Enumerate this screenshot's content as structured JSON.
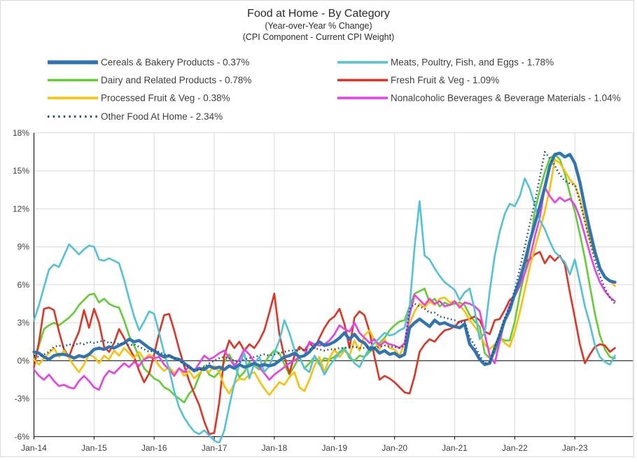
{
  "title": {
    "main": "Food at Home - By Category",
    "sub1": "(Year-over-Year % Change)",
    "sub2": "(CPI Component - Current CPI Weight)"
  },
  "colors": {
    "cereals": "#2E75B6",
    "meats": "#4EC3DC",
    "dairy": "#5FD02E",
    "fresh": "#E8301F",
    "processed": "#FFC000",
    "nonalcoholic": "#EE3CEC",
    "other": "#1F4E79",
    "gridline": "#D9D9D9",
    "axis": "#000000",
    "text": "#3f3f3f",
    "border": "#D9D9D9"
  },
  "legend": {
    "columns": [
      [
        {
          "id": "cereals",
          "label": "Cereals & Bakery Products - 0.37%",
          "style": "thick"
        },
        {
          "id": "dairy",
          "label": "Dairy and Related Products - 0.78%",
          "style": "solid"
        },
        {
          "id": "processed",
          "label": "Processed Fruit & Veg - 0.38%",
          "style": "solid"
        },
        {
          "id": "other",
          "label": "Other Food At Home - 2.34%",
          "style": "dotted"
        }
      ],
      [
        {
          "id": "meats",
          "label": "Meats, Poultry, Fish, and Eggs - 1.78%",
          "style": "solid"
        },
        {
          "id": "fresh",
          "label": "Fresh Fruit & Veg - 1.09%",
          "style": "solid"
        },
        {
          "id": "nonalcoholic",
          "label": "Nonalcoholic Beverages & Beverage Materials - 1.04%",
          "style": "solid"
        }
      ]
    ]
  },
  "chart_data": {
    "type": "line",
    "x_start": "Jan-2014",
    "x_frequency": "monthly",
    "x_tick_labels": [
      "Jan-14",
      "Jan-15",
      "Jan-16",
      "Jan-17",
      "Jan-18",
      "Jan-19",
      "Jan-20",
      "Jan-21",
      "Jan-22",
      "Jan-23"
    ],
    "y_ticks": [
      18,
      15,
      12,
      9,
      6,
      3,
      0,
      -3,
      -6
    ],
    "y_tick_suffix": "%",
    "ylim": [
      -6,
      18
    ],
    "grid": true,
    "legend_position": "top-left",
    "series": [
      {
        "id": "dairy",
        "name": "Dairy and Related Products - 0.78%",
        "values": [
          0.0,
          1.2,
          2.5,
          2.8,
          3.0,
          2.8,
          3.1,
          3.4,
          3.8,
          4.4,
          4.8,
          5.2,
          5.3,
          4.6,
          4.9,
          4.5,
          4.3,
          4.2,
          3.2,
          2.0,
          1.2,
          0.3,
          -0.6,
          -1.0,
          -1.4,
          -1.6,
          -2.1,
          -2.3,
          -2.7,
          -3.0,
          -3.3,
          -2.6,
          -2.2,
          -1.2,
          -0.4,
          -1.1,
          -1.3,
          -0.9,
          -0.1,
          0.5,
          -0.3,
          -1.3,
          -0.9,
          -0.1,
          -0.4,
          -0.7,
          -0.2,
          0.4,
          0.8,
          0.6,
          -0.3,
          -1.1,
          -0.4,
          0.3,
          -0.6,
          -0.2,
          0.3,
          -0.3,
          0.2,
          0.1,
          0.3,
          0.7,
          1.0,
          0.2,
          0.0,
          0.4,
          0.3,
          0.7,
          1.0,
          1.4,
          1.8,
          2.4,
          2.8,
          3.1,
          3.2,
          4.3,
          5.3,
          5.5,
          5.7,
          4.6,
          4.9,
          4.3,
          4.6,
          4.4,
          4.5,
          4.6,
          4.4,
          3.6,
          3.1,
          2.7,
          0.6,
          0.2,
          0.6,
          1.8,
          1.6,
          1.6,
          3.1,
          5.2,
          7.0,
          9.1,
          11.8,
          13.5,
          14.9,
          16.0,
          16.3,
          15.9,
          14.8,
          13.2,
          11.8,
          10.0,
          8.1,
          5.9,
          3.7,
          2.0,
          0.9,
          0.3,
          0.2
        ]
      },
      {
        "id": "fresh",
        "name": "Fresh Fruit & Veg - 1.09%",
        "values": [
          -0.5,
          1.5,
          4.1,
          4.2,
          4.0,
          2.3,
          0.9,
          0.3,
          1.4,
          2.3,
          4.0,
          2.6,
          4.1,
          3.0,
          1.1,
          0.7,
          1.4,
          2.5,
          1.8,
          1.0,
          0.3,
          -0.8,
          -1.7,
          -1.0,
          0.5,
          2.2,
          3.6,
          3.7,
          2.4,
          0.9,
          -0.4,
          -1.6,
          -2.6,
          -3.5,
          -4.8,
          -5.8,
          -5.7,
          -3.3,
          0.4,
          1.6,
          1.0,
          1.5,
          0.8,
          1.3,
          1.0,
          1.6,
          2.4,
          3.8,
          5.3,
          2.1,
          0.3,
          -1.0,
          0.4,
          1.1,
          0.8,
          1.4,
          1.0,
          1.8,
          2.6,
          3.2,
          3.5,
          4.1,
          2.9,
          1.0,
          3.4,
          3.9,
          3.6,
          2.3,
          0.3,
          -1.5,
          -1.2,
          -1.4,
          -1.7,
          -2.1,
          -2.5,
          -2.6,
          -1.2,
          0.7,
          1.3,
          1.7,
          1.5,
          2.0,
          2.4,
          2.5,
          2.7,
          3.1,
          3.2,
          3.3,
          3.5,
          3.2,
          2.3,
          2.1,
          3.2,
          3.3,
          4.0,
          4.8,
          5.1,
          5.9,
          7.8,
          8.0,
          8.4,
          8.6,
          7.7,
          8.3,
          7.9,
          8.3,
          7.6,
          5.4,
          3.4,
          1.3,
          -0.2,
          0.5,
          1.1,
          1.3,
          1.2,
          0.7,
          1.0
        ]
      },
      {
        "id": "processed",
        "name": "Processed Fruit & Veg - 0.38%",
        "values": [
          0.1,
          -0.3,
          0.2,
          0.6,
          1.0,
          0.3,
          0.8,
          0.2,
          -0.4,
          -0.9,
          -0.3,
          0.5,
          0.3,
          -0.2,
          0.4,
          0.1,
          0.8,
          0.4,
          1.0,
          0.6,
          0.2,
          0.7,
          0.1,
          0.5,
          0.2,
          -0.4,
          -0.8,
          -0.5,
          -1.0,
          -0.6,
          -1.2,
          -0.8,
          -1.4,
          -1.0,
          -0.6,
          -0.9,
          -0.4,
          -0.9,
          -2.0,
          -2.6,
          -1.8,
          -1.4,
          -1.5,
          -1.1,
          -0.9,
          -1.6,
          -2.2,
          -2.7,
          -2.2,
          -1.7,
          -1.9,
          -1.3,
          -0.9,
          -2.1,
          -2.4,
          -1.5,
          -0.4,
          0.3,
          -0.9,
          0.2,
          0.9,
          0.3,
          0.8,
          0.4,
          1.6,
          0.8,
          2.0,
          2.4,
          1.6,
          0.9,
          1.7,
          1.0,
          0.9,
          0.4,
          1.4,
          2.9,
          3.9,
          4.5,
          4.2,
          4.7,
          4.4,
          4.9,
          5.0,
          4.6,
          4.7,
          4.4,
          3.9,
          3.2,
          2.7,
          2.1,
          1.3,
          0.9,
          1.3,
          1.8,
          1.4,
          1.1,
          2.3,
          3.8,
          5.6,
          7.4,
          8.9,
          10.3,
          11.8,
          13.6,
          15.9,
          15.6,
          15.0,
          14.3,
          13.9,
          12.8,
          11.1,
          9.5,
          8.3,
          7.3,
          6.7,
          6.3,
          5.9
        ]
      },
      {
        "id": "nonalcoholic",
        "name": "Nonalcoholic Beverages & Beverage Materials - 1.04%",
        "values": [
          -0.7,
          -1.2,
          -1.5,
          -1.1,
          -1.6,
          -2.0,
          -1.9,
          -2.1,
          -2.2,
          -1.6,
          -1.2,
          -1.6,
          -2.1,
          -2.3,
          -1.3,
          -0.8,
          -1.0,
          -0.6,
          -0.2,
          -0.5,
          -0.1,
          -0.4,
          0.1,
          0.3,
          0.2,
          0.3,
          -0.3,
          -0.7,
          -1.2,
          -0.6,
          -0.9,
          -0.4,
          -0.8,
          -0.2,
          0.4,
          0.1,
          0.3,
          0.6,
          0.8,
          0.2,
          -0.4,
          0.1,
          0.9,
          0.5,
          -0.1,
          -0.5,
          -1.0,
          -1.5,
          -1.1,
          -0.8,
          -0.5,
          -0.2,
          0.0,
          0.3,
          0.4,
          1.5,
          1.3,
          1.2,
          1.3,
          1.6,
          2.1,
          2.8,
          2.5,
          2.3,
          3.0,
          2.2,
          1.8,
          1.4,
          1.7,
          1.2,
          1.5,
          1.3,
          1.2,
          1.0,
          1.4,
          3.6,
          5.2,
          4.8,
          4.4,
          4.9,
          4.5,
          4.7,
          4.3,
          4.4,
          4.7,
          4.2,
          4.6,
          4.5,
          4.3,
          3.9,
          2.1,
          0.4,
          -0.2,
          1.5,
          3.2,
          4.4,
          5.1,
          5.9,
          6.9,
          8.1,
          9.8,
          11.3,
          13.7,
          13.0,
          12.5,
          12.9,
          12.6,
          12.8,
          12.3,
          11.3,
          9.9,
          8.5,
          7.2,
          6.2,
          5.5,
          5.0,
          4.7
        ]
      },
      {
        "id": "meats",
        "name": "Meats, Poultry, Fish, and Eggs - 1.78%",
        "values": [
          3.2,
          4.4,
          5.8,
          7.2,
          7.6,
          7.4,
          8.3,
          9.2,
          8.8,
          8.4,
          8.8,
          9.1,
          9.0,
          8.0,
          7.9,
          8.1,
          7.9,
          7.7,
          6.4,
          4.9,
          3.5,
          2.4,
          3.1,
          3.9,
          3.7,
          2.2,
          0.6,
          -0.7,
          -2.4,
          -3.7,
          -4.5,
          -5.1,
          -5.6,
          -5.8,
          -5.5,
          -5.9,
          -6.3,
          -6.5,
          -5.5,
          -3.6,
          -1.8,
          -0.3,
          0.6,
          -1.4,
          -0.2,
          0.3,
          -0.9,
          -0.4,
          0.6,
          1.6,
          3.2,
          2.2,
          0.9,
          0.3,
          -0.6,
          -0.9,
          0.4,
          -0.2,
          -1.1,
          -0.4,
          0.1,
          0.6,
          0.9,
          0.4,
          -0.2,
          -0.5,
          0.3,
          1.0,
          1.4,
          1.8,
          2.2,
          2.0,
          2.1,
          2.4,
          2.6,
          4.2,
          9.0,
          12.6,
          8.3,
          8.0,
          7.3,
          6.7,
          6.2,
          5.9,
          5.6,
          4.8,
          5.4,
          5.7,
          4.0,
          1.7,
          2.2,
          5.5,
          8.3,
          10.2,
          11.6,
          12.4,
          12.2,
          13.0,
          14.4,
          13.6,
          12.3,
          11.1,
          10.4,
          9.4,
          8.6,
          8.2,
          7.8,
          6.8,
          8.0,
          6.2,
          4.3,
          2.9,
          1.2,
          0.3,
          -0.1,
          -0.3,
          0.4
        ]
      },
      {
        "id": "cereals",
        "name": "Cereals & Bakery Products - 0.37%",
        "values": [
          0.7,
          0.6,
          0.3,
          0.1,
          0.4,
          0.5,
          0.5,
          0.4,
          0.2,
          0.4,
          0.3,
          0.5,
          0.9,
          1.0,
          0.9,
          1.1,
          1.0,
          1.2,
          1.4,
          1.7,
          1.5,
          1.6,
          1.3,
          1.0,
          0.8,
          0.5,
          0.3,
          0.4,
          0.2,
          0.1,
          -0.2,
          -0.5,
          -0.8,
          -0.6,
          -0.7,
          -0.4,
          -0.6,
          -0.5,
          -0.7,
          -0.4,
          -0.6,
          -0.3,
          -0.5,
          -0.4,
          -0.2,
          -0.4,
          -0.3,
          -0.4,
          -0.3,
          0.0,
          0.3,
          0.4,
          0.6,
          0.3,
          0.4,
          0.7,
          1.2,
          1.5,
          1.2,
          1.3,
          1.5,
          1.8,
          2.2,
          1.7,
          2.1,
          1.6,
          1.4,
          0.9,
          1.0,
          0.6,
          0.8,
          0.5,
          0.6,
          0.3,
          0.5,
          2.6,
          3.0,
          3.3,
          3.0,
          2.7,
          3.2,
          2.9,
          3.0,
          2.8,
          2.7,
          2.6,
          2.9,
          1.3,
          0.8,
          0.1,
          -0.3,
          -0.2,
          1.0,
          2.0,
          3.2,
          4.0,
          5.3,
          6.4,
          7.8,
          9.4,
          10.8,
          12.2,
          13.7,
          15.4,
          16.3,
          16.4,
          16.1,
          16.3,
          15.6,
          14.1,
          12.1,
          10.3,
          8.6,
          7.3,
          6.6,
          6.3,
          6.2
        ]
      },
      {
        "id": "other",
        "name": "Other Food At Home - 2.34%",
        "values": [
          0.4,
          0.3,
          0.5,
          0.7,
          1.1,
          1.2,
          1.1,
          1.3,
          1.2,
          1.4,
          1.3,
          1.5,
          1.4,
          1.5,
          1.6,
          1.4,
          1.5,
          1.3,
          1.4,
          1.2,
          1.3,
          1.1,
          0.9,
          0.7,
          0.8,
          0.7,
          0.5,
          0.4,
          0.2,
          0.0,
          -0.3,
          -0.5,
          -0.7,
          -0.8,
          -0.5,
          -0.2,
          0.0,
          0.2,
          0.3,
          0.2,
          0.0,
          -0.1,
          0.1,
          0.2,
          0.3,
          0.4,
          0.5,
          0.4,
          0.5,
          0.6,
          0.7,
          0.8,
          0.8,
          0.9,
          0.8,
          0.9,
          1.0,
          0.9,
          0.8,
          0.9,
          0.9,
          1.0,
          1.0,
          1.1,
          1.1,
          1.0,
          1.0,
          1.1,
          1.0,
          1.1,
          1.2,
          1.1,
          1.1,
          1.0,
          1.2,
          4.1,
          4.5,
          4.3,
          4.1,
          3.8,
          3.8,
          3.5,
          3.4,
          3.3,
          3.2,
          3.0,
          3.1,
          1.8,
          1.2,
          0.4,
          -0.2,
          -0.1,
          1.0,
          2.2,
          3.4,
          4.3,
          5.6,
          7.2,
          9.0,
          10.8,
          12.5,
          14.5,
          16.5,
          16.0,
          15.4,
          14.7,
          14.2,
          14.0,
          13.9,
          12.6,
          11.0,
          9.4,
          7.9,
          6.7,
          5.7,
          5.0,
          4.5
        ]
      }
    ]
  }
}
